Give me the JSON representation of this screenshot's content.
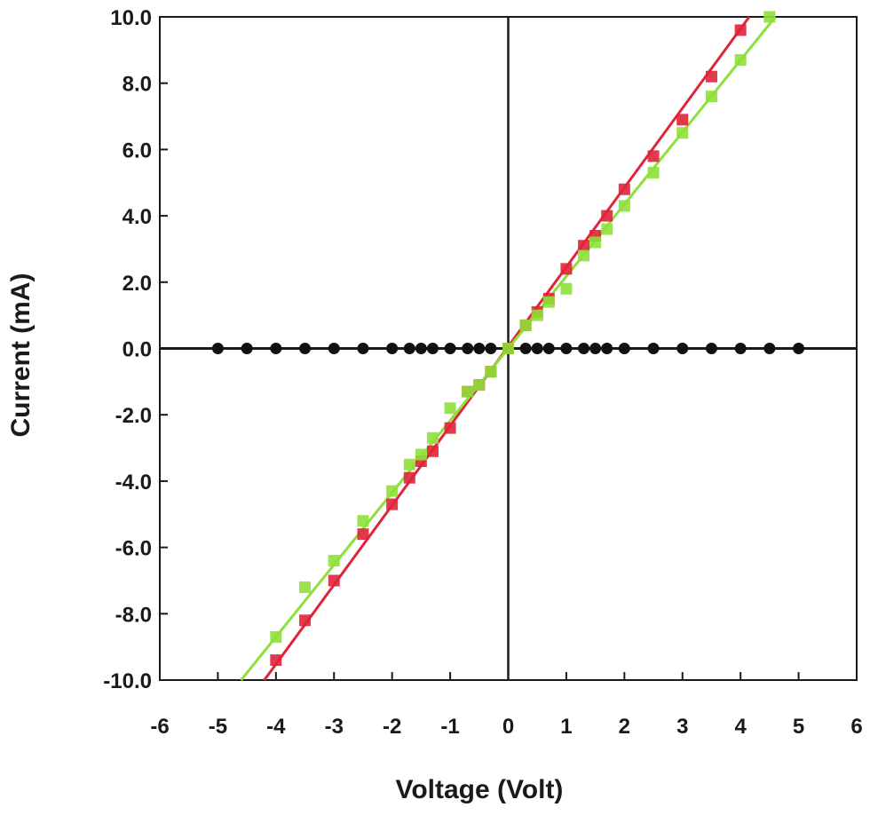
{
  "chart_data": {
    "type": "scatter",
    "title": "",
    "xlabel": "Voltage (Volt)",
    "ylabel": "Current (mA)",
    "xlim": [
      -6,
      6
    ],
    "ylim": [
      -10,
      10
    ],
    "x_ticks": [
      -6,
      -5,
      -4,
      -3,
      -2,
      -1,
      0,
      1,
      2,
      3,
      4,
      5,
      6
    ],
    "x_tick_labels": [
      "-6",
      "-5",
      "-4",
      "-3",
      "-2",
      "-1",
      "0",
      "1",
      "2",
      "3",
      "4",
      "5",
      "6"
    ],
    "y_ticks": [
      -10,
      -8,
      -6,
      -4,
      -2,
      0,
      2,
      4,
      6,
      8,
      10
    ],
    "y_tick_labels": [
      "-10.0",
      "-8.0",
      "-6.0",
      "-4.0",
      "-2.0",
      "0.0",
      "2.0",
      "4.0",
      "6.0",
      "8.0",
      "10.0"
    ],
    "grid": false,
    "legend": "none",
    "series": [
      {
        "color": "#111111",
        "marker": "circle",
        "points": [
          [
            -5,
            0
          ],
          [
            -4.5,
            0
          ],
          [
            -4,
            0
          ],
          [
            -3.5,
            0
          ],
          [
            -3,
            0
          ],
          [
            -2.5,
            0
          ],
          [
            -2,
            0
          ],
          [
            -1.7,
            0
          ],
          [
            -1.5,
            0
          ],
          [
            -1.3,
            0
          ],
          [
            -1,
            0
          ],
          [
            -0.7,
            0
          ],
          [
            -0.5,
            0
          ],
          [
            -0.3,
            0
          ],
          [
            0,
            0
          ],
          [
            0.3,
            0
          ],
          [
            0.5,
            0
          ],
          [
            0.7,
            0
          ],
          [
            1,
            0
          ],
          [
            1.3,
            0
          ],
          [
            1.5,
            0
          ],
          [
            1.7,
            0
          ],
          [
            2,
            0
          ],
          [
            2.5,
            0
          ],
          [
            3,
            0
          ],
          [
            3.5,
            0
          ],
          [
            4,
            0
          ],
          [
            4.5,
            0
          ],
          [
            5,
            0
          ]
        ]
      },
      {
        "color": "#e0243a",
        "marker": "square",
        "fit_line": [
          [
            -4.2,
            -10
          ],
          [
            4.15,
            10
          ]
        ],
        "points": [
          [
            -4,
            -9.4
          ],
          [
            -3.5,
            -8.2
          ],
          [
            -3,
            -7.0
          ],
          [
            -2.5,
            -5.6
          ],
          [
            -2,
            -4.7
          ],
          [
            -1.7,
            -3.9
          ],
          [
            -1.5,
            -3.4
          ],
          [
            -1.3,
            -3.1
          ],
          [
            -1,
            -2.4
          ],
          [
            -0.7,
            -1.3
          ],
          [
            -0.5,
            -1.1
          ],
          [
            -0.3,
            -0.7
          ],
          [
            0,
            0
          ],
          [
            0.3,
            0.7
          ],
          [
            0.5,
            1.1
          ],
          [
            0.7,
            1.5
          ],
          [
            1,
            2.4
          ],
          [
            1.3,
            3.1
          ],
          [
            1.5,
            3.4
          ],
          [
            1.7,
            4.0
          ],
          [
            2,
            4.8
          ],
          [
            2.5,
            5.8
          ],
          [
            3,
            6.9
          ],
          [
            3.5,
            8.2
          ],
          [
            4,
            9.6
          ]
        ]
      },
      {
        "color": "#8ee03a",
        "marker": "square",
        "fit_line": [
          [
            -4.6,
            -10
          ],
          [
            4.6,
            10
          ]
        ],
        "points": [
          [
            -4,
            -8.7
          ],
          [
            -3.5,
            -7.2
          ],
          [
            -3,
            -6.4
          ],
          [
            -2.5,
            -5.2
          ],
          [
            -2,
            -4.3
          ],
          [
            -1.7,
            -3.5
          ],
          [
            -1.5,
            -3.2
          ],
          [
            -1.3,
            -2.7
          ],
          [
            -1,
            -1.8
          ],
          [
            -0.7,
            -1.3
          ],
          [
            -0.5,
            -1.1
          ],
          [
            -0.3,
            -0.7
          ],
          [
            0,
            0
          ],
          [
            0.3,
            0.7
          ],
          [
            0.5,
            1.0
          ],
          [
            0.7,
            1.4
          ],
          [
            1,
            1.8
          ],
          [
            1.3,
            2.8
          ],
          [
            1.5,
            3.2
          ],
          [
            1.7,
            3.6
          ],
          [
            2,
            4.3
          ],
          [
            2.5,
            5.3
          ],
          [
            3,
            6.5
          ],
          [
            3.5,
            7.6
          ],
          [
            4,
            8.7
          ],
          [
            4.5,
            10.0
          ]
        ]
      }
    ]
  }
}
